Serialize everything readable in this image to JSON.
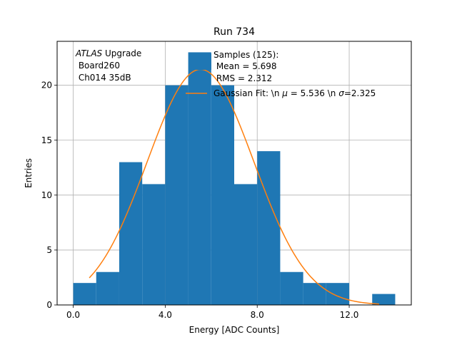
{
  "chart_data": {
    "type": "bar",
    "title": "Run 734",
    "xlabel": "Energy [ADC Counts]",
    "ylabel": "Entries",
    "xlim": [
      -0.7,
      14.7
    ],
    "ylim": [
      0,
      24
    ],
    "xticks": [
      0.0,
      4.0,
      8.0,
      12.0
    ],
    "xtick_labels": [
      "0.0",
      "4.0",
      "8.0",
      "12.0"
    ],
    "yticks": [
      0,
      5,
      10,
      15,
      20
    ],
    "ytick_labels": [
      "0",
      "5",
      "10",
      "15",
      "20"
    ],
    "grid": true,
    "histogram": {
      "name": "Samples (125):\n Mean = 5.698\n RMS = 2.312",
      "color": "#1f77b4",
      "bin_edges": [
        0,
        1,
        2,
        3,
        4,
        5,
        6,
        7,
        8,
        9,
        10,
        11,
        12,
        13,
        14
      ],
      "counts": [
        2,
        3,
        13,
        11,
        20,
        23,
        20,
        11,
        14,
        3,
        2,
        2,
        0,
        1
      ]
    },
    "fit": {
      "name": "Gaussian Fit: \\n $\\mu$ = 5.536 \\n $\\sigma$=2.325",
      "color": "#ff7f0e",
      "x_range": [
        0.7,
        13.3
      ],
      "mu": 5.536,
      "sigma": 2.325,
      "amplitude": 21.45
    },
    "annotation": {
      "italic_part": "ATLAS",
      "rest": " Upgrade",
      "line2": " Board260",
      "line3": " Ch014 35dB"
    },
    "legend": {
      "location": "top-right",
      "hist_lines": [
        "Samples (125):",
        " Mean = 5.698",
        " RMS = 2.312"
      ],
      "fit_text_parts": [
        "Gaussian Fit: \\n ",
        "μ",
        " = 5.536 \\n ",
        "σ",
        "=2.325"
      ]
    }
  }
}
